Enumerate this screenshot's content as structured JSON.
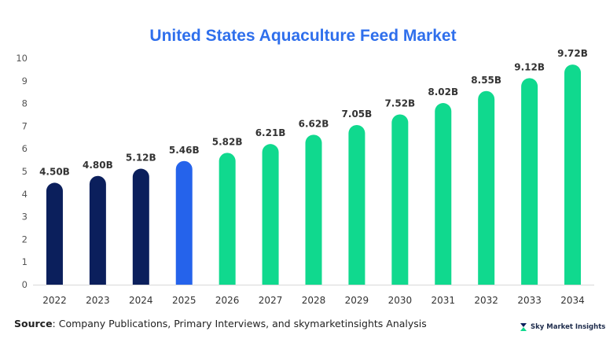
{
  "chart_data": {
    "type": "bar",
    "title": "United States Aquaculture Feed Market",
    "xlabel": "",
    "ylabel": "",
    "categories": [
      "2022",
      "2023",
      "2024",
      "2025",
      "2026",
      "2027",
      "2028",
      "2029",
      "2030",
      "2031",
      "2032",
      "2033",
      "2034"
    ],
    "values": [
      4.5,
      4.8,
      5.12,
      5.46,
      5.82,
      6.21,
      6.62,
      7.05,
      7.52,
      8.02,
      8.55,
      9.12,
      9.72
    ],
    "data_labels": [
      "4.50B",
      "4.80B",
      "5.12B",
      "5.46B",
      "5.82B",
      "6.21B",
      "6.62B",
      "7.05B",
      "7.52B",
      "8.02B",
      "8.55B",
      "9.12B",
      "9.72B"
    ],
    "ylim": [
      0,
      10
    ],
    "yticks": [
      "0",
      "1",
      "2",
      "3",
      "4",
      "5",
      "6",
      "7",
      "8",
      "9",
      "10"
    ],
    "grid": false,
    "bar_colors": [
      "#0b1f5c",
      "#0b1f5c",
      "#0b1f5c",
      "#2563eb",
      "#10d98e",
      "#10d98e",
      "#10d98e",
      "#10d98e",
      "#10d98e",
      "#10d98e",
      "#10d98e",
      "#10d98e",
      "#10d98e"
    ]
  },
  "footer": {
    "source_prefix": "Source",
    "source_text": ": Company Publications, Primary Interviews, and skymarketinsights Analysis",
    "brand_name": "Sky Market Insights",
    "brand_icon": "sky-market-insights-logo-icon"
  }
}
